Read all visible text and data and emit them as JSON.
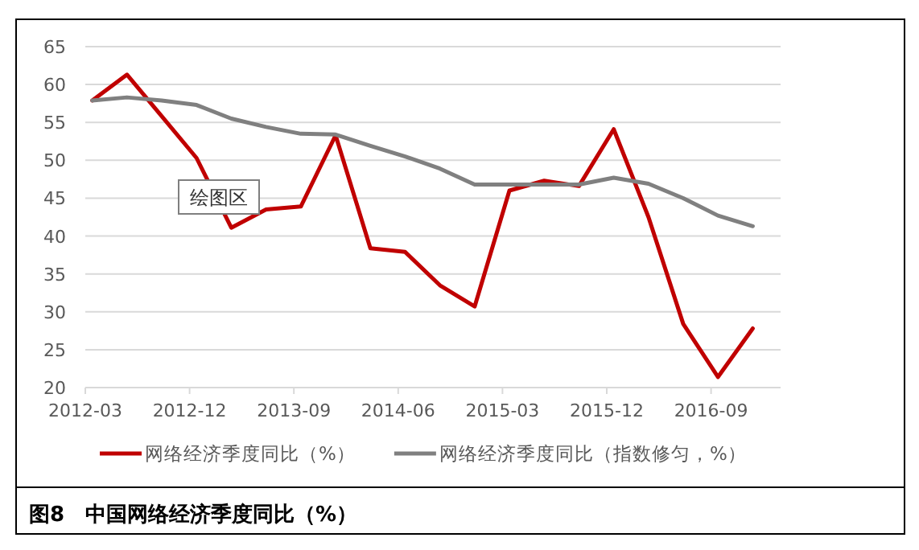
{
  "chart_data": {
    "type": "line",
    "title": "图8　中国网络经济季度同比（%）",
    "categories": [
      "2012-03",
      null,
      null,
      "2012-12",
      null,
      null,
      "2013-09",
      null,
      null,
      "2014-06",
      null,
      null,
      "2015-03",
      null,
      null,
      "2015-12",
      null,
      null,
      "2016-09",
      null
    ],
    "series": [
      {
        "name": "网络经济季度同比（%）",
        "color": "#c00000",
        "values": [
          57.9,
          61.3,
          55.8,
          50.3,
          41.1,
          43.5,
          43.9,
          53.3,
          38.4,
          37.9,
          33.5,
          30.7,
          46.0,
          47.3,
          46.6,
          54.1,
          42.5,
          28.4,
          21.4,
          27.8
        ]
      },
      {
        "name": "网络经济季度同比（指数修匀，%）",
        "color": "#808080",
        "values": [
          57.9,
          58.3,
          57.9,
          57.3,
          55.5,
          54.4,
          53.5,
          53.4,
          51.9,
          50.5,
          48.9,
          46.8,
          46.8,
          46.8,
          46.8,
          47.7,
          46.9,
          45.0,
          42.7,
          41.3
        ]
      }
    ],
    "ylim": [
      20,
      65
    ],
    "yticks": [
      20,
      25,
      30,
      35,
      40,
      45,
      50,
      55,
      60,
      65
    ],
    "grid": "y",
    "legend": "bottom",
    "marker": "none",
    "line_style": "solid",
    "annotations": [
      "绘图区"
    ]
  }
}
